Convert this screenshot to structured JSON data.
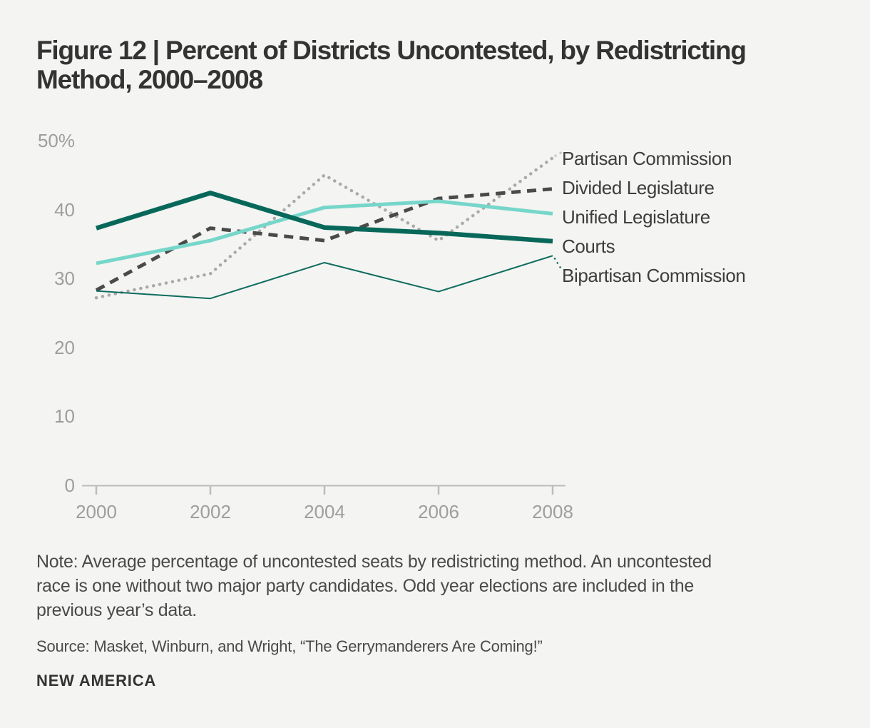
{
  "figure": {
    "title_lines": [
      "Figure 12 | Percent of Districts Uncontested, by Redistricting",
      "Method, 2000–2008"
    ],
    "note_lines": [
      "Note: Average percentage of uncontested seats by redistricting method. An uncontested",
      "race is one without two major party candidates. Odd year elections are included in the",
      "previous year’s data."
    ],
    "source": "Source: Masket, Winburn, and Wright, “The Gerrymanderers Are Coming!”",
    "brand": "NEW AMERICA"
  },
  "chart_data": {
    "type": "line",
    "x": [
      2000,
      2002,
      2004,
      2006,
      2008
    ],
    "x_tick_labels": [
      "2000",
      "2002",
      "2004",
      "2006",
      "2008"
    ],
    "y_ticks": [
      0,
      10,
      20,
      30,
      40,
      50
    ],
    "y_tick_labels": [
      "0",
      "10",
      "20",
      "30",
      "40",
      "50%"
    ],
    "xlim": [
      2000,
      2008
    ],
    "ylim": [
      0,
      50
    ],
    "xlabel": "",
    "ylabel": "",
    "grid": false,
    "legend_position": "right-of-line-ends",
    "series": [
      {
        "name": "Partisan Commission",
        "values": [
          27.2,
          30.7,
          45.0,
          35.5,
          47.5
        ],
        "color": "#a9a9a9",
        "line_style": "dotted",
        "line_width": 4.5
      },
      {
        "name": "Divided Legislature",
        "values": [
          28.3,
          37.3,
          35.5,
          41.6,
          43.0
        ],
        "color": "#4a4a4a",
        "line_style": "dashed",
        "line_width": 5
      },
      {
        "name": "Unified Legislature",
        "values": [
          32.2,
          35.5,
          40.3,
          41.2,
          39.4
        ],
        "color": "#76d6ca",
        "line_style": "solid",
        "line_width": 5
      },
      {
        "name": "Courts",
        "values": [
          37.3,
          42.4,
          37.4,
          36.6,
          35.4
        ],
        "color": "#07685a",
        "line_style": "solid",
        "line_width": 6.5
      },
      {
        "name": "Bipartisan Commission",
        "values": [
          28.2,
          27.1,
          32.3,
          28.1,
          33.3
        ],
        "color": "#0d6c5e",
        "line_style": "solid",
        "line_width": 2
      }
    ]
  },
  "colors": {
    "background": "#f4f4f2",
    "title_text": "#333333",
    "body_text": "#4a4a4a",
    "axis_text": "#9e9e9e",
    "axis_line": "#bcbcbc",
    "legend_text": "#3d3d3d",
    "partisan_leader": "#c8c8c8"
  }
}
